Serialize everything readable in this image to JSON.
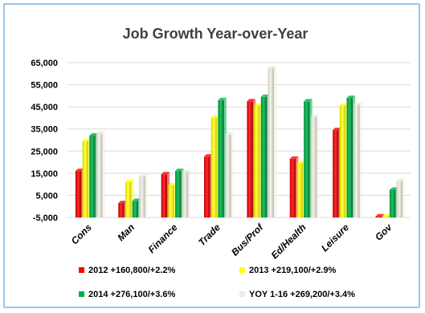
{
  "chart_data": {
    "type": "bar",
    "title": "Job Growth Year-over-Year",
    "xlabel": "",
    "ylabel": "",
    "categories": [
      "Cons",
      "Man",
      "Finance",
      "Trade",
      "Bus/Prof",
      "Ed/Health",
      "Leisure",
      "Gov"
    ],
    "series": [
      {
        "name": "2012 +160,800/+2.2%",
        "color": "#ff0000",
        "values": [
          16000,
          1500,
          14500,
          22500,
          47500,
          21500,
          34500,
          -4500
        ]
      },
      {
        "name": "2013 +219,100/+2.9%",
        "color": "#ffff00",
        "values": [
          29500,
          11000,
          9500,
          40000,
          45500,
          19500,
          45500,
          -4500
        ]
      },
      {
        "name": "2014 +276,100/+3.6%",
        "color": "#00b050",
        "values": [
          32000,
          2500,
          16000,
          48000,
          49500,
          47500,
          49000,
          7500
        ]
      },
      {
        "name": "YOY 1-16 +269,200/+3.4%",
        "color": "#eeece1",
        "values": [
          33000,
          13500,
          15500,
          32500,
          62500,
          40500,
          46000,
          11500
        ]
      }
    ],
    "y_ticks": [
      "-5,000",
      "5,000",
      "15,000",
      "25,000",
      "35,000",
      "45,000",
      "55,000",
      "65,000"
    ],
    "ylim": [
      -5000,
      65000
    ],
    "grid": true,
    "legend_position": "bottom"
  }
}
